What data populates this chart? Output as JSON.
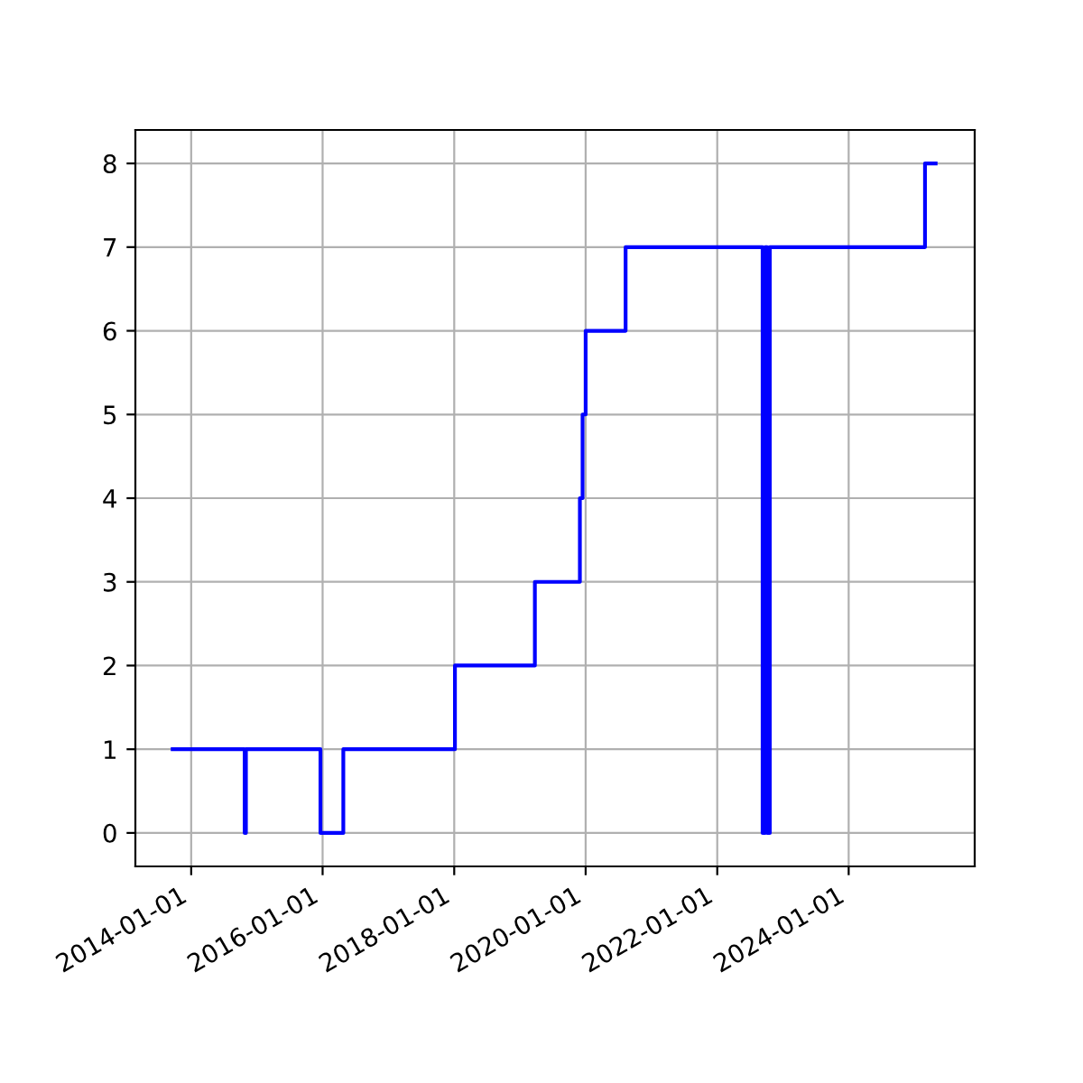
{
  "chart_data": {
    "type": "step",
    "x": [
      "2013-09-20",
      "2014-10-25",
      "2014-11-01",
      "2015-12-20",
      "2016-04-25",
      "2018-01-05",
      "2019-03-25",
      "2019-11-30",
      "2019-12-15",
      "2020-01-01",
      "2020-08-10",
      "2022-09-10",
      "2022-09-25",
      "2022-10-05",
      "2022-10-20",
      "2025-02-28",
      "2025-04-28"
    ],
    "series": [
      {
        "color": "#0000ff",
        "values": [
          1,
          0,
          1,
          0,
          1,
          2,
          3,
          4,
          5,
          6,
          7,
          0,
          7,
          0,
          7,
          8,
          8
        ]
      }
    ],
    "xlim": [
      "2013-02-25",
      "2025-12-01"
    ],
    "xticks": [
      "2014-01-01",
      "2016-01-01",
      "2018-01-01",
      "2020-01-01",
      "2022-01-01",
      "2024-01-01"
    ],
    "ylim": [
      -0.4,
      8.4
    ],
    "yticks": [
      0,
      1,
      2,
      3,
      4,
      5,
      6,
      7,
      8
    ],
    "grid": true,
    "legend": false,
    "marker": "none",
    "line_style": "solid"
  }
}
